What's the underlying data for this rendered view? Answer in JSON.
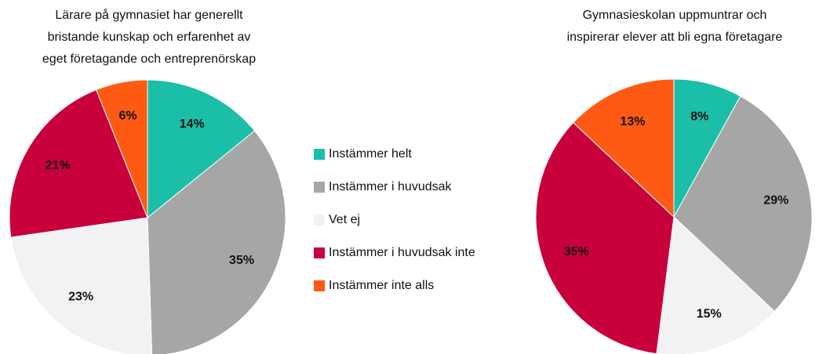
{
  "chart_data": [
    {
      "type": "pie",
      "title": [
        "Lärare på gymnasiet har generellt",
        "bristande kunskap och erfarenhet av",
        "eget företagande och entreprenörskap"
      ],
      "categories": [
        "Instämmer helt",
        "Instämmer i huvudsak",
        "Vet ej",
        "Instämmer i huvudsak inte",
        "Instämmer inte alls"
      ],
      "values": [
        14,
        35,
        23,
        21,
        6
      ],
      "value_labels": [
        "14%",
        "35%",
        "23%",
        "21%",
        "6%"
      ],
      "colors": [
        "#1bbfa8",
        "#a6a6a6",
        "#f2f2f2",
        "#c8003c",
        "#ff5a14"
      ]
    },
    {
      "type": "pie",
      "title": [
        "Gymnasieskolan uppmuntrar och",
        "inspirerar elever att bli egna företagare"
      ],
      "categories": [
        "Instämmer helt",
        "Instämmer i huvudsak",
        "Vet ej",
        "Instämmer i huvudsak inte",
        "Instämmer inte alls"
      ],
      "values": [
        8,
        29,
        15,
        35,
        13
      ],
      "value_labels": [
        "8%",
        "29%",
        "15%",
        "35%",
        "13%"
      ],
      "colors": [
        "#1bbfa8",
        "#a6a6a6",
        "#f2f2f2",
        "#c8003c",
        "#ff5a14"
      ]
    }
  ]
}
